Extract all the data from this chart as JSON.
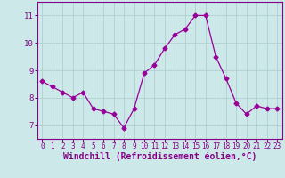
{
  "x": [
    0,
    1,
    2,
    3,
    4,
    5,
    6,
    7,
    8,
    9,
    10,
    11,
    12,
    13,
    14,
    15,
    16,
    17,
    18,
    19,
    20,
    21,
    22,
    23
  ],
  "y": [
    8.6,
    8.4,
    8.2,
    8.0,
    8.2,
    7.6,
    7.5,
    7.4,
    6.9,
    7.6,
    8.9,
    9.2,
    9.8,
    10.3,
    10.5,
    11.0,
    11.0,
    9.5,
    8.7,
    7.8,
    7.4,
    7.7,
    7.6,
    7.6
  ],
  "line_color": "#990099",
  "marker": "D",
  "marker_size": 2.5,
  "bg_color": "#cce8e8",
  "grid_color": "#aacccc",
  "xlabel": "Windchill (Refroidissement éolien,°C)",
  "ylim": [
    6.5,
    11.5
  ],
  "xlim": [
    -0.5,
    23.5
  ],
  "yticks": [
    7,
    8,
    9,
    10,
    11
  ],
  "xticks": [
    0,
    1,
    2,
    3,
    4,
    5,
    6,
    7,
    8,
    9,
    10,
    11,
    12,
    13,
    14,
    15,
    16,
    17,
    18,
    19,
    20,
    21,
    22,
    23
  ],
  "axis_fontsize": 7,
  "tick_fontsize": 6.5,
  "spine_color": "#880088"
}
